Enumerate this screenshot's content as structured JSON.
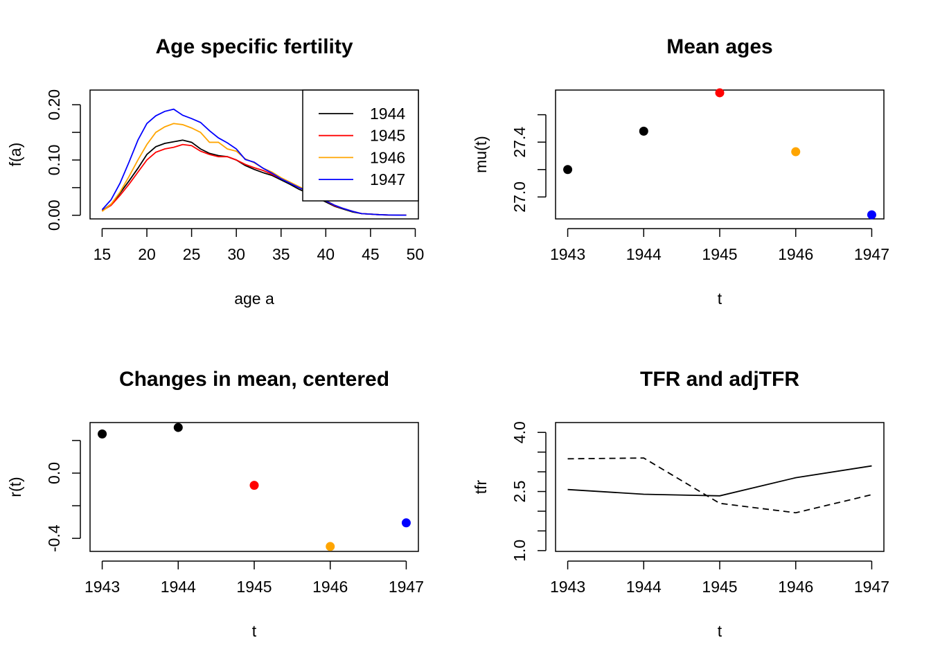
{
  "chart_data": [
    {
      "type": "line",
      "title": "Age specific fertility",
      "xlabel": "age a",
      "ylabel": "f(a)",
      "xlim": [
        15,
        50
      ],
      "ylim": [
        0,
        0.22
      ],
      "xticks": [
        "15",
        "20",
        "25",
        "30",
        "35",
        "40",
        "45",
        "50"
      ],
      "yticks": [
        "0.00",
        "0.10",
        "0.20"
      ],
      "legend_position": "top-right",
      "x": [
        15,
        16,
        17,
        18,
        19,
        20,
        21,
        22,
        23,
        24,
        25,
        26,
        27,
        28,
        29,
        30,
        31,
        32,
        33,
        34,
        35,
        36,
        37,
        38,
        39,
        40,
        41,
        42,
        43,
        44,
        45,
        46,
        47,
        48,
        49
      ],
      "series": [
        {
          "name": "1944",
          "color": "#000000",
          "values": [
            0.008,
            0.02,
            0.04,
            0.062,
            0.085,
            0.11,
            0.124,
            0.13,
            0.133,
            0.136,
            0.132,
            0.12,
            0.112,
            0.108,
            0.106,
            0.1,
            0.09,
            0.083,
            0.077,
            0.072,
            0.064,
            0.056,
            0.047,
            0.04,
            0.032,
            0.024,
            0.016,
            0.011,
            0.006,
            0.003,
            0.002,
            0.001,
            0.0005,
            0.0002,
            0.0001
          ]
        },
        {
          "name": "1945",
          "color": "#ff0000",
          "values": [
            0.008,
            0.018,
            0.036,
            0.056,
            0.078,
            0.1,
            0.114,
            0.12,
            0.123,
            0.128,
            0.126,
            0.116,
            0.11,
            0.106,
            0.106,
            0.1,
            0.092,
            0.086,
            0.081,
            0.074,
            0.066,
            0.058,
            0.05,
            0.043,
            0.035,
            0.026,
            0.017,
            0.012,
            0.007,
            0.003,
            0.002,
            0.001,
            0.0005,
            0.0002,
            0.0001
          ]
        },
        {
          "name": "1946",
          "color": "#ffa500",
          "values": [
            0.007,
            0.02,
            0.042,
            0.07,
            0.1,
            0.128,
            0.15,
            0.16,
            0.166,
            0.164,
            0.158,
            0.15,
            0.132,
            0.132,
            0.12,
            0.116,
            0.102,
            0.095,
            0.085,
            0.078,
            0.068,
            0.06,
            0.052,
            0.044,
            0.036,
            0.027,
            0.018,
            0.012,
            0.007,
            0.003,
            0.002,
            0.001,
            0.0005,
            0.0002,
            0.0001
          ]
        },
        {
          "name": "1947",
          "color": "#0000ff",
          "values": [
            0.01,
            0.028,
            0.058,
            0.096,
            0.136,
            0.166,
            0.18,
            0.188,
            0.192,
            0.181,
            0.175,
            0.168,
            0.153,
            0.14,
            0.131,
            0.12,
            0.101,
            0.096,
            0.085,
            0.076,
            0.066,
            0.058,
            0.05,
            0.043,
            0.035,
            0.026,
            0.018,
            0.012,
            0.007,
            0.003,
            0.002,
            0.001,
            0.0005,
            0.0002,
            0.0001
          ]
        }
      ]
    },
    {
      "type": "scatter",
      "title": "Mean ages",
      "xlabel": "t",
      "ylabel": "mu(t)",
      "xlim": [
        1943,
        1947
      ],
      "ylim": [
        26.8,
        27.85
      ],
      "xticks": [
        "1943",
        "1944",
        "1945",
        "1946",
        "1947"
      ],
      "yticks": [
        "27.0",
        "27.4"
      ],
      "points": [
        {
          "x": 1943,
          "y": 27.2,
          "color": "#000000"
        },
        {
          "x": 1944,
          "y": 27.48,
          "color": "#000000"
        },
        {
          "x": 1945,
          "y": 27.76,
          "color": "#ff0000"
        },
        {
          "x": 1946,
          "y": 27.33,
          "color": "#ffa500"
        },
        {
          "x": 1947,
          "y": 26.87,
          "color": "#0000ff"
        }
      ]
    },
    {
      "type": "scatter",
      "title": "Changes in mean, centered",
      "xlabel": "t",
      "ylabel": "r(t)",
      "xlim": [
        1943,
        1947
      ],
      "ylim": [
        -0.48,
        0.34
      ],
      "xticks": [
        "1943",
        "1944",
        "1945",
        "1946",
        "1947"
      ],
      "yticks": [
        "-0.4",
        "0.0"
      ],
      "points": [
        {
          "x": 1943,
          "y": 0.24,
          "color": "#000000"
        },
        {
          "x": 1944,
          "y": 0.28,
          "color": "#000000"
        },
        {
          "x": 1945,
          "y": -0.075,
          "color": "#ff0000"
        },
        {
          "x": 1946,
          "y": -0.45,
          "color": "#ffa500"
        },
        {
          "x": 1947,
          "y": -0.305,
          "color": "#0000ff"
        }
      ]
    },
    {
      "type": "line",
      "title": "TFR and adjTFR",
      "xlabel": "t",
      "ylabel": "tfr",
      "xlim": [
        1943,
        1947
      ],
      "ylim": [
        1.0,
        4.25
      ],
      "xticks": [
        "1943",
        "1944",
        "1945",
        "1946",
        "1947"
      ],
      "yticks": [
        "1.0",
        "2.5",
        "4.0"
      ],
      "x": [
        1943,
        1944,
        1945,
        1946,
        1947
      ],
      "series": [
        {
          "line_style": "solid",
          "color": "#000000",
          "values": [
            2.55,
            2.43,
            2.39,
            2.85,
            3.15
          ]
        },
        {
          "line_style": "dashed",
          "color": "#000000",
          "values": [
            3.33,
            3.35,
            2.2,
            1.96,
            2.42
          ]
        }
      ]
    }
  ]
}
